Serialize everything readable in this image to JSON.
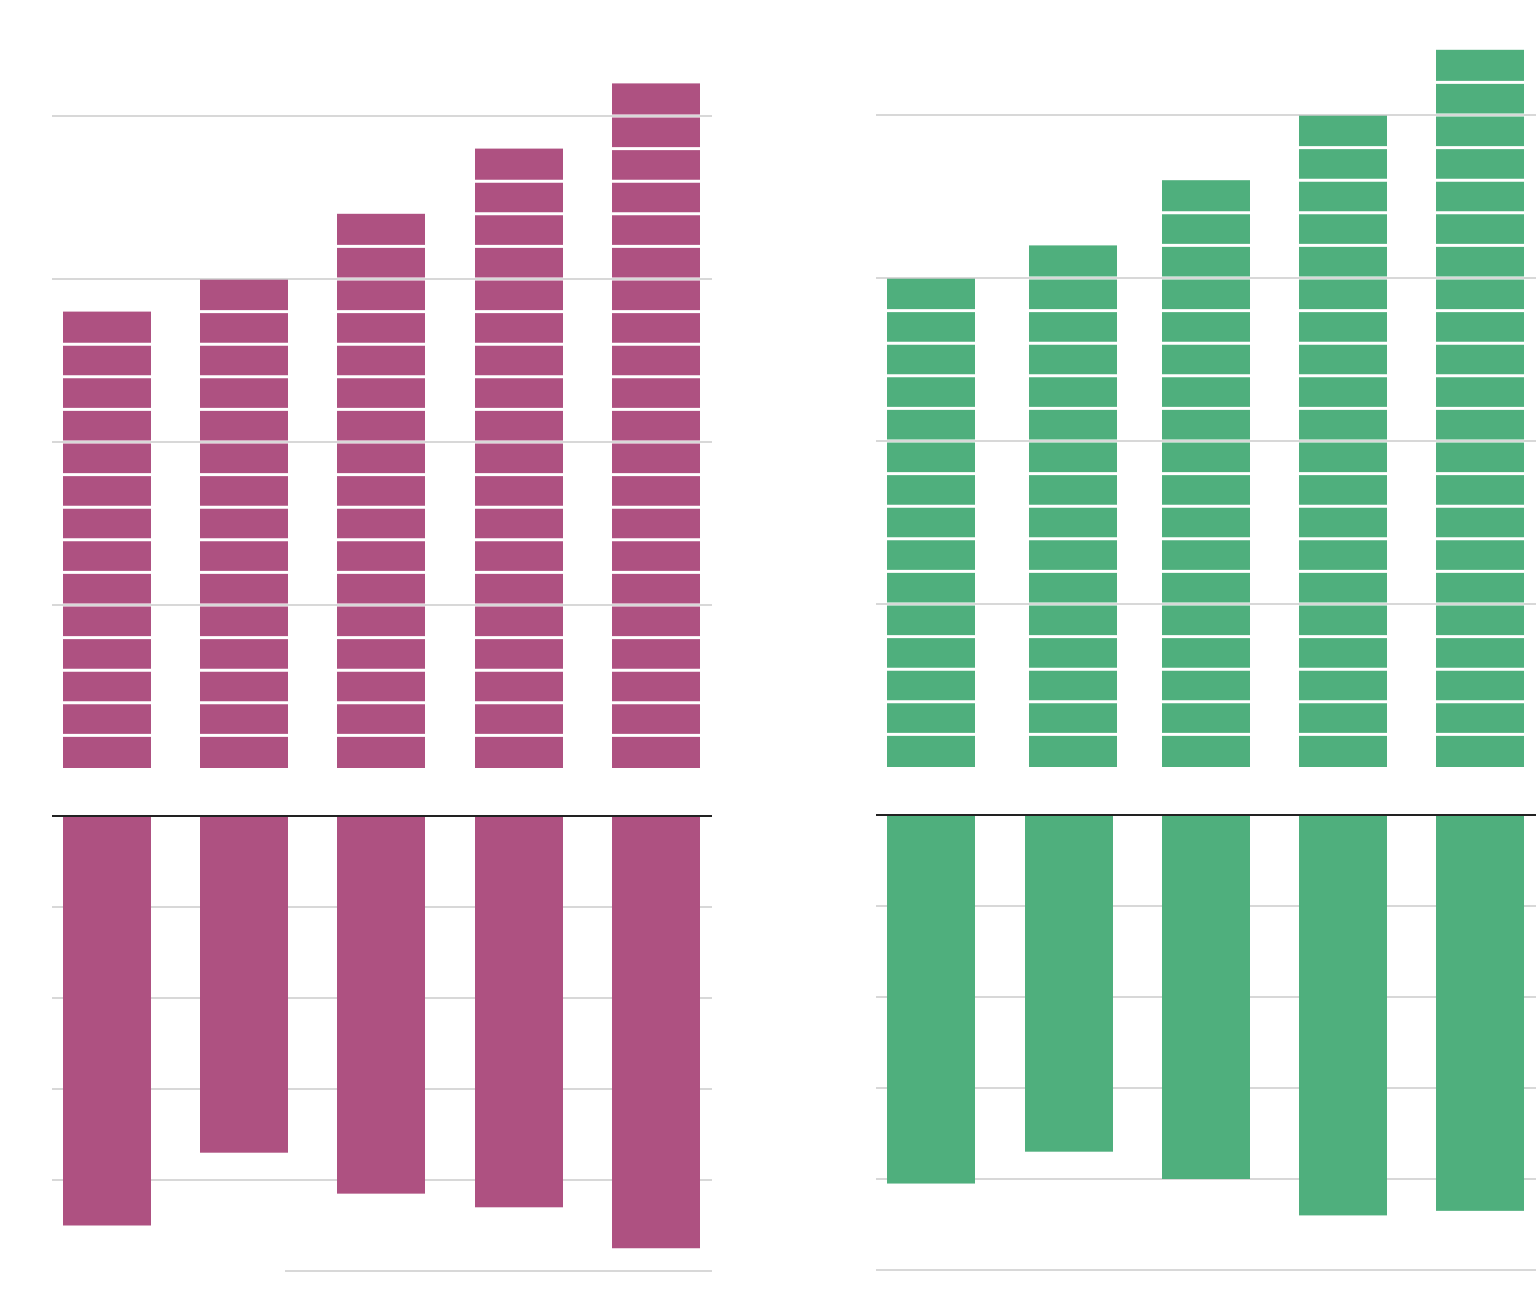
{
  "chart_data": [
    {
      "id": "left-top",
      "type": "bar",
      "series": [
        {
          "values": [
            14,
            15,
            17,
            19,
            21
          ]
        }
      ],
      "segment_unit": 1,
      "ylim": [
        0,
        21
      ],
      "grid_step": 5,
      "color": "#ae5181",
      "xlabel": "",
      "ylabel": "",
      "title": "",
      "grid": true
    },
    {
      "id": "left-bottom",
      "type": "bar",
      "direction": "downward",
      "series": [
        {
          "values": [
            4.5,
            3.7,
            4.15,
            4.3,
            4.75
          ]
        }
      ],
      "ylim": [
        0,
        5
      ],
      "grid_step": 1,
      "color": "#ae5181",
      "xlabel": "",
      "ylabel": "",
      "title": "",
      "grid": true
    },
    {
      "id": "right-top",
      "type": "bar",
      "series": [
        {
          "values": [
            15,
            16,
            18,
            20,
            22
          ]
        }
      ],
      "segment_unit": 1,
      "ylim": [
        0,
        22
      ],
      "grid_step": 5,
      "color": "#4faf7d",
      "xlabel": "",
      "ylabel": "",
      "title": "",
      "grid": true
    },
    {
      "id": "right-bottom",
      "type": "bar",
      "direction": "downward",
      "series": [
        {
          "values": [
            4.05,
            3.7,
            4.0,
            4.4,
            4.35
          ]
        }
      ],
      "ylim": [
        0,
        5
      ],
      "grid_step": 1,
      "color": "#4faf7d",
      "xlabel": "",
      "ylabel": "",
      "title": "",
      "grid": true
    }
  ]
}
